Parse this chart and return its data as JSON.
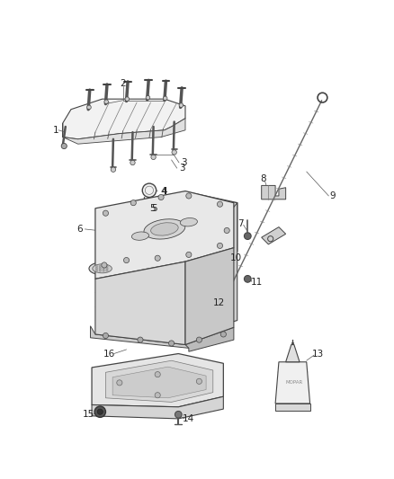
{
  "background_color": "#ffffff",
  "fig_width": 4.38,
  "fig_height": 5.33,
  "dpi": 100,
  "label_color": "#222222",
  "line_color": "#444444",
  "light_gray": "#b0b0b0",
  "mid_gray": "#888888",
  "dark_gray": "#333333"
}
